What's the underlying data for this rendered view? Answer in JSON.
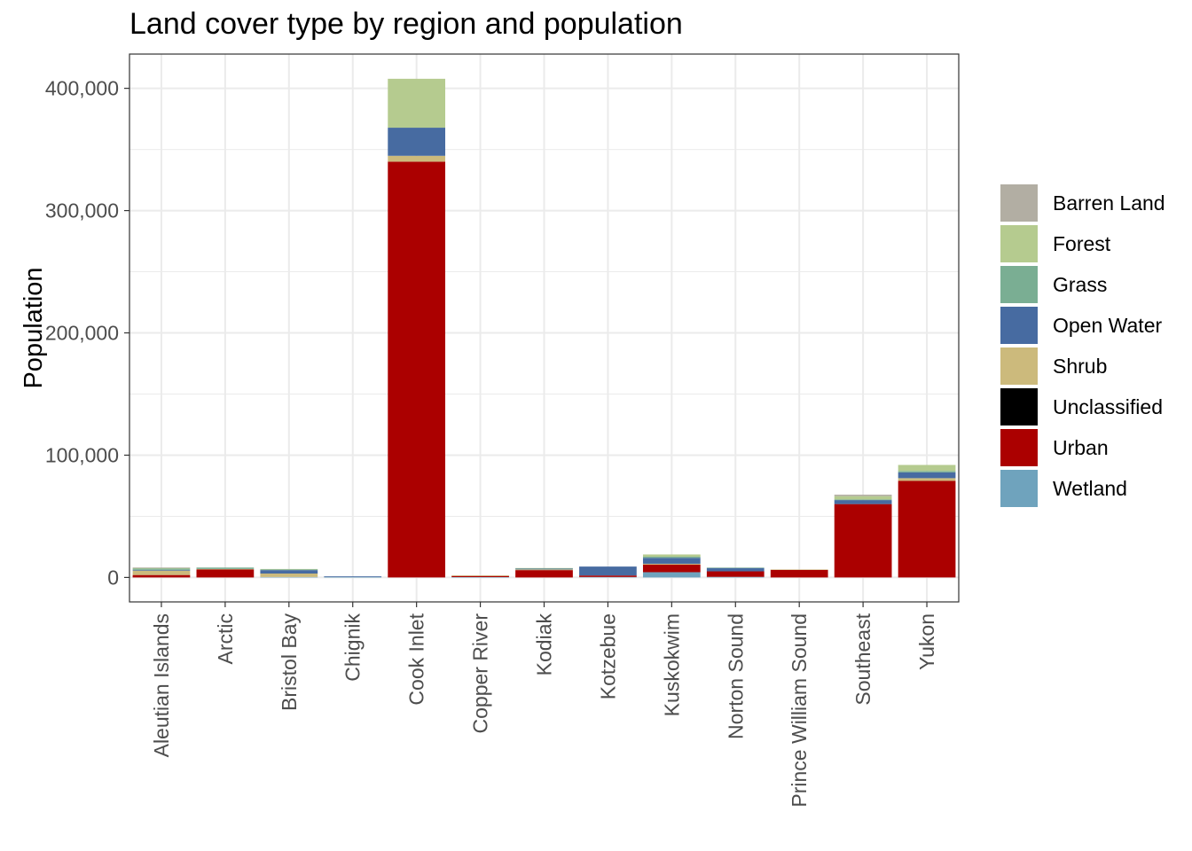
{
  "chart_data": {
    "type": "bar",
    "stacked": true,
    "title": "Land cover type by region and population",
    "xlabel": "",
    "ylabel": "Population",
    "ylim": [
      -20000,
      428000
    ],
    "yticks": [
      0,
      100000,
      200000,
      300000,
      400000
    ],
    "ytick_labels": [
      "0",
      "100,000",
      "200,000",
      "300,000",
      "400,000"
    ],
    "grid": true,
    "legend_position": "right",
    "categories": [
      "Aleutian Islands",
      "Arctic",
      "Bristol Bay",
      "Chignik",
      "Cook Inlet",
      "Copper River",
      "Kodiak",
      "Kotzebue",
      "Kuskokwim",
      "Norton Sound",
      "Prince William Sound",
      "Southeast",
      "Yukon"
    ],
    "series": [
      {
        "name": "Wetland",
        "color": "#6fa3bd",
        "values": [
          0,
          0,
          400,
          300,
          0,
          300,
          0,
          400,
          4300,
          500,
          0,
          0,
          0
        ]
      },
      {
        "name": "Urban",
        "color": "#ab0000",
        "values": [
          2000,
          6600,
          0,
          0,
          340000,
          900,
          6000,
          1200,
          6200,
          4500,
          6300,
          60000,
          79000
        ]
      },
      {
        "name": "Unclassified",
        "color": "#000000",
        "values": [
          0,
          0,
          0,
          0,
          0,
          0,
          0,
          0,
          0,
          0,
          0,
          0,
          0
        ]
      },
      {
        "name": "Shrub",
        "color": "#ccba7c",
        "values": [
          3600,
          300,
          2800,
          0,
          4800,
          500,
          600,
          0,
          700,
          0,
          200,
          0,
          2200
        ]
      },
      {
        "name": "Open Water",
        "color": "#476ba1",
        "values": [
          600,
          0,
          2800,
          600,
          23000,
          0,
          600,
          7300,
          4800,
          2700,
          0,
          3300,
          4700
        ]
      },
      {
        "name": "Grass",
        "color": "#7aae93",
        "values": [
          1000,
          1200,
          700,
          0,
          0,
          0,
          300,
          0,
          1000,
          400,
          0,
          500,
          1200
        ]
      },
      {
        "name": "Forest",
        "color": "#b5cb8f",
        "values": [
          500,
          0,
          200,
          0,
          40000,
          0,
          200,
          0,
          1800,
          0,
          0,
          2700,
          4900
        ]
      },
      {
        "name": "Barren Land",
        "color": "#b2aea3",
        "values": [
          500,
          0,
          0,
          0,
          0,
          0,
          0,
          0,
          0,
          0,
          0,
          1200,
          0
        ]
      }
    ],
    "legend_order": [
      "Barren Land",
      "Forest",
      "Grass",
      "Open Water",
      "Shrub",
      "Unclassified",
      "Urban",
      "Wetland"
    ]
  }
}
